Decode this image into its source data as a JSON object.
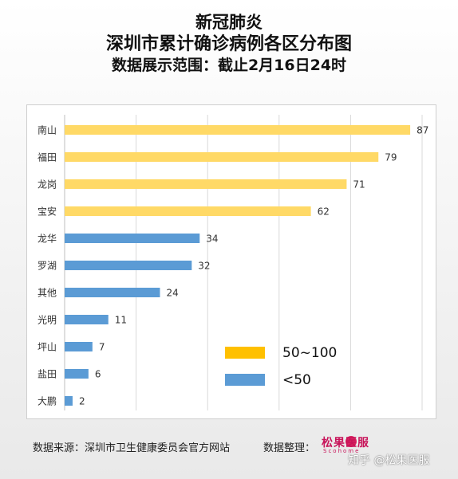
{
  "title_lines": [
    "新冠肺炎",
    "深圳市累计确诊病例各区分布图",
    "数据展示范围：截止2月16日24时"
  ],
  "colors": {
    "high": "#FFD966",
    "low": "#5B9BD5",
    "legend_high": "#FFC000",
    "legend_low": "#5B9BD5"
  },
  "chart_data": {
    "type": "bar",
    "orientation": "horizontal",
    "categories": [
      "南山",
      "福田",
      "龙岗",
      "宝安",
      "龙华",
      "罗湖",
      "其他",
      "光明",
      "坪山",
      "盐田",
      "大鹏"
    ],
    "values": [
      87,
      79,
      71,
      62,
      34,
      32,
      24,
      11,
      7,
      6,
      2
    ],
    "groups": [
      "50~100",
      "50~100",
      "50~100",
      "50~100",
      "<50",
      "<50",
      "<50",
      "<50",
      "<50",
      "<50",
      "<50"
    ],
    "xlim": [
      0,
      90
    ],
    "xgrid_values": [
      0,
      18,
      36,
      54,
      72,
      90
    ],
    "grid": true,
    "legend": [
      {
        "name": "50~100",
        "color": "#FFC000"
      },
      {
        "name": "<50",
        "color": "#5B9BD5"
      }
    ],
    "legend_placement": "bottom-right"
  },
  "footer": {
    "source": "数据来源：深圳市卫生健康委员会官方网站",
    "compiled_label": "数据整理：",
    "logo_text": "松果医服",
    "logo_sub": "Scohome",
    "watermark": "知乎 @松果医服"
  }
}
